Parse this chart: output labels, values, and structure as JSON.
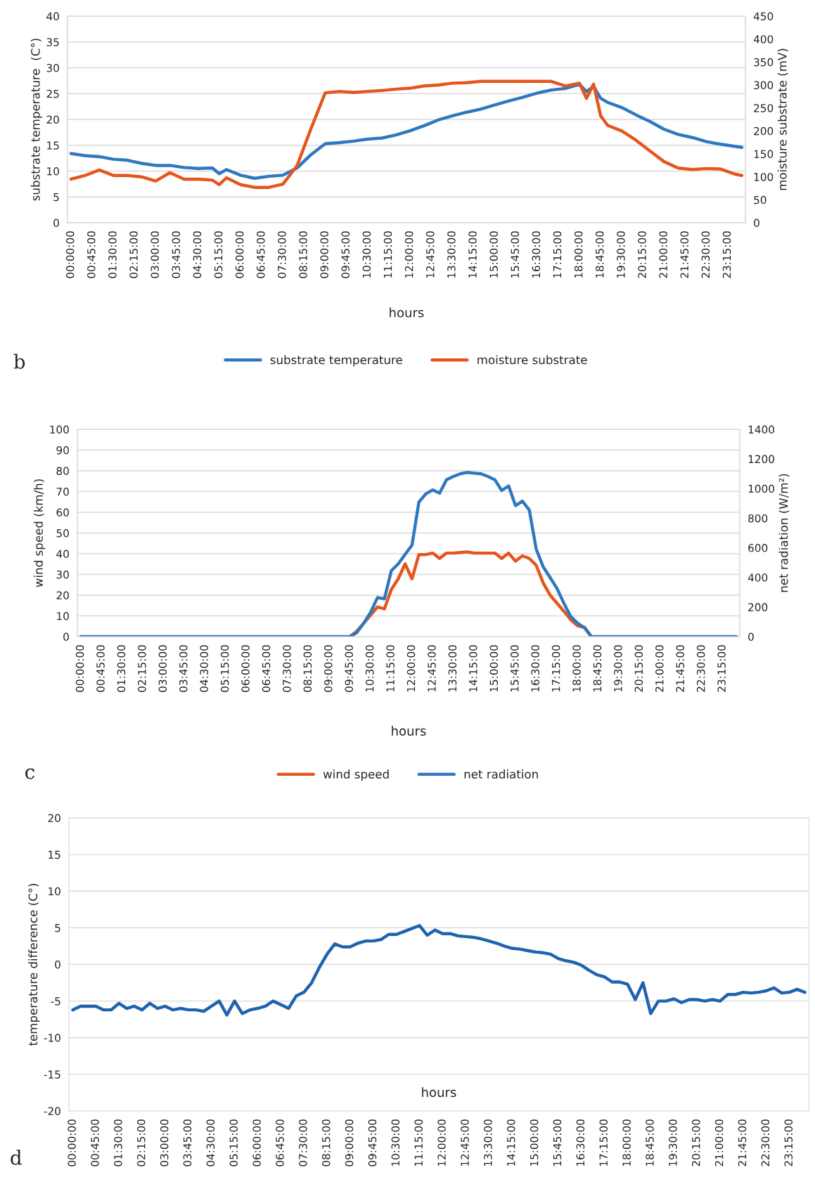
{
  "chart_data": [
    {
      "type": "line",
      "xlabel": "hours",
      "ylabel": "substrate temperature  (C°)",
      "y2label": "moisture substrate (mV)",
      "annotations": [
        "b"
      ],
      "legend": "bottom",
      "grid": "y",
      "x": [
        0,
        0.5,
        1,
        1.5,
        2,
        2.5,
        3,
        3.5,
        4,
        4.5,
        5,
        5.25,
        5.5,
        6,
        6.5,
        7,
        7.5,
        8,
        8.5,
        9,
        9.5,
        10,
        10.5,
        11,
        11.5,
        12,
        12.5,
        13,
        13.5,
        14,
        14.5,
        15,
        15.5,
        16,
        16.5,
        17,
        17.5,
        18,
        18.25,
        18.5,
        18.75,
        19,
        19.5,
        20,
        20.5,
        21,
        21.5,
        22,
        22.5,
        23,
        23.5,
        23.75
      ],
      "xlim": [
        -0.125,
        23.875
      ],
      "xticks": [
        {
          "value": 0,
          "label": "00:00:00"
        },
        {
          "value": 0.75,
          "label": "00:45:00"
        },
        {
          "value": 1.5,
          "label": "01:30:00"
        },
        {
          "value": 2.25,
          "label": "02:15:00"
        },
        {
          "value": 3,
          "label": "03:00:00"
        },
        {
          "value": 3.75,
          "label": "03:45:00"
        },
        {
          "value": 4.5,
          "label": "04:30:00"
        },
        {
          "value": 5.25,
          "label": "05:15:00"
        },
        {
          "value": 6,
          "label": "06:00:00"
        },
        {
          "value": 6.75,
          "label": "06:45:00"
        },
        {
          "value": 7.5,
          "label": "07:30:00"
        },
        {
          "value": 8.25,
          "label": "08:15:00"
        },
        {
          "value": 9,
          "label": "09:00:00"
        },
        {
          "value": 9.75,
          "label": "09:45:00"
        },
        {
          "value": 10.5,
          "label": "10:30:00"
        },
        {
          "value": 11.25,
          "label": "11:15:00"
        },
        {
          "value": 12,
          "label": "12:00:00"
        },
        {
          "value": 12.75,
          "label": "12:45:00"
        },
        {
          "value": 13.5,
          "label": "13:30:00"
        },
        {
          "value": 14.25,
          "label": "14:15:00"
        },
        {
          "value": 15,
          "label": "15:00:00"
        },
        {
          "value": 15.75,
          "label": "15:45:00"
        },
        {
          "value": 16.5,
          "label": "16:30:00"
        },
        {
          "value": 17.25,
          "label": "17:15:00"
        },
        {
          "value": 18,
          "label": "18:00:00"
        },
        {
          "value": 18.75,
          "label": "18:45:00"
        },
        {
          "value": 19.5,
          "label": "19:30:00"
        },
        {
          "value": 20.25,
          "label": "20:15:00"
        },
        {
          "value": 21,
          "label": "21:00:00"
        },
        {
          "value": 21.75,
          "label": "21:45:00"
        },
        {
          "value": 22.5,
          "label": "22:30:00"
        },
        {
          "value": 23.25,
          "label": "23:15:00"
        }
      ],
      "ylim": [
        0,
        40
      ],
      "yticks": [
        0,
        5,
        10,
        15,
        20,
        25,
        30,
        35,
        40
      ],
      "y2lim": [
        0,
        450
      ],
      "y2ticks": [
        0,
        50,
        100,
        150,
        200,
        250,
        300,
        350,
        400,
        450
      ],
      "series": [
        {
          "name": "substrate temperature",
          "color": "#2f78c0",
          "values": [
            13.4,
            13.0,
            12.8,
            12.3,
            12.1,
            11.5,
            11.1,
            11.1,
            10.7,
            10.5,
            10.6,
            9.5,
            10.3,
            9.2,
            8.6,
            9.0,
            9.2,
            10.6,
            13.2,
            15.3,
            15.5,
            15.8,
            16.2,
            16.4,
            17.0,
            17.8,
            18.8,
            19.9,
            20.7,
            21.4,
            22.0,
            22.8,
            23.6,
            24.3,
            25.1,
            25.7,
            26.0,
            26.8,
            25.4,
            26.4,
            24.1,
            23.3,
            22.3,
            20.9,
            19.6,
            18.1,
            17.1,
            16.5,
            15.7,
            15.2,
            14.8,
            14.6
          ]
        },
        {
          "name": "moisture substrate",
          "color": "#e5561e",
          "axis": "y2",
          "values": [
            95,
            103,
            115,
            103,
            103,
            100,
            91,
            109,
            95,
            95,
            93,
            83,
            98,
            83,
            77,
            77,
            84,
            124,
            206,
            283,
            286,
            284,
            286,
            288,
            291,
            293,
            298,
            300,
            304,
            305,
            308,
            308,
            308,
            308,
            308,
            308,
            298,
            304,
            271,
            302,
            233,
            212,
            200,
            180,
            156,
            133,
            119,
            116,
            118,
            117,
            106,
            103
          ]
        }
      ]
    },
    {
      "type": "line",
      "xlabel": "hours",
      "ylabel": "wind speed (km/h)",
      "y2label": "net radiation (W/m²)",
      "annotations": [
        "c"
      ],
      "legend": "bottom",
      "grid": "y",
      "x": [
        0,
        0.5,
        1,
        1.5,
        2,
        2.5,
        3,
        3.5,
        4,
        4.5,
        5,
        5.5,
        6,
        6.5,
        7,
        7.5,
        8,
        8.5,
        9,
        9.5,
        9.75,
        10,
        10.25,
        10.5,
        10.75,
        11,
        11.25,
        11.5,
        11.75,
        12,
        12.25,
        12.5,
        12.75,
        13,
        13.25,
        13.5,
        13.75,
        14,
        14.25,
        14.5,
        14.75,
        15,
        15.25,
        15.5,
        15.75,
        16,
        16.25,
        16.5,
        16.75,
        17,
        17.25,
        17.5,
        17.75,
        18,
        18.25,
        18.5,
        19,
        19.5,
        20,
        20.5,
        21,
        21.5,
        22,
        22.5,
        23,
        23.5,
        23.75
      ],
      "xlim": [
        -0.125,
        23.875
      ],
      "xticks": [
        {
          "value": 0,
          "label": "00:00:00"
        },
        {
          "value": 0.75,
          "label": "00:45:00"
        },
        {
          "value": 1.5,
          "label": "01:30:00"
        },
        {
          "value": 2.25,
          "label": "02:15:00"
        },
        {
          "value": 3,
          "label": "03:00:00"
        },
        {
          "value": 3.75,
          "label": "03:45:00"
        },
        {
          "value": 4.5,
          "label": "04:30:00"
        },
        {
          "value": 5.25,
          "label": "05:15:00"
        },
        {
          "value": 6,
          "label": "06:00:00"
        },
        {
          "value": 6.75,
          "label": "06:45:00"
        },
        {
          "value": 7.5,
          "label": "07:30:00"
        },
        {
          "value": 8.25,
          "label": "08:15:00"
        },
        {
          "value": 9,
          "label": "09:00:00"
        },
        {
          "value": 9.75,
          "label": "09:45:00"
        },
        {
          "value": 10.5,
          "label": "10:30:00"
        },
        {
          "value": 11.25,
          "label": "11:15:00"
        },
        {
          "value": 12,
          "label": "12:00:00"
        },
        {
          "value": 12.75,
          "label": "12:45:00"
        },
        {
          "value": 13.5,
          "label": "13:30:00"
        },
        {
          "value": 14.25,
          "label": "14:15:00"
        },
        {
          "value": 15,
          "label": "15:00:00"
        },
        {
          "value": 15.75,
          "label": "15:45:00"
        },
        {
          "value": 16.5,
          "label": "16:30:00"
        },
        {
          "value": 17.25,
          "label": "17:15:00"
        },
        {
          "value": 18,
          "label": "18:00:00"
        },
        {
          "value": 18.75,
          "label": "18:45:00"
        },
        {
          "value": 19.5,
          "label": "19:30:00"
        },
        {
          "value": 20.25,
          "label": "20:15:00"
        },
        {
          "value": 21,
          "label": "21:00:00"
        },
        {
          "value": 21.75,
          "label": "21:45:00"
        },
        {
          "value": 22.5,
          "label": "22:30:00"
        },
        {
          "value": 23.25,
          "label": "23:15:00"
        }
      ],
      "ylim": [
        0,
        100
      ],
      "yticks": [
        0,
        10,
        20,
        30,
        40,
        50,
        60,
        70,
        80,
        90,
        100
      ],
      "y2lim": [
        0,
        1400
      ],
      "y2ticks": [
        0,
        200,
        400,
        600,
        800,
        1000,
        1200,
        1400
      ],
      "series": [
        {
          "name": "wind speed",
          "color": "#e5561e",
          "values": [
            null,
            null,
            null,
            null,
            null,
            null,
            null,
            null,
            null,
            null,
            null,
            null,
            null,
            null,
            null,
            null,
            null,
            null,
            null,
            null,
            0,
            2.6,
            6.5,
            10.4,
            14.3,
            13.4,
            22.7,
            27.9,
            35.1,
            27.9,
            39.6,
            39.6,
            40.3,
            37.7,
            40.3,
            40.3,
            40.6,
            40.9,
            40.3,
            40.3,
            40.3,
            40.3,
            37.7,
            40.3,
            36.4,
            39.0,
            37.7,
            34.4,
            26.0,
            20.1,
            16.2,
            12.3,
            8.2,
            5.2,
            4.5,
            0,
            null,
            null,
            null,
            null,
            null,
            null,
            null,
            null,
            null,
            null,
            null
          ]
        },
        {
          "name": "net radiation",
          "color": "#2f78c0",
          "axis": "y2",
          "values": [
            0,
            0,
            0,
            0,
            0,
            0,
            0,
            0,
            0,
            0,
            0,
            0,
            0,
            0,
            0,
            0,
            0,
            0,
            0,
            0,
            0,
            27,
            91,
            164,
            264,
            255,
            445,
            491,
            555,
            618,
            909,
            964,
            991,
            969,
            1060,
            1082,
            1100,
            1109,
            1104,
            1100,
            1082,
            1060,
            987,
            1018,
            885,
            915,
            855,
            591,
            473,
            400,
            327,
            227,
            136,
            91,
            60,
            0,
            0,
            0,
            0,
            0,
            0,
            0,
            0,
            0,
            0,
            0,
            0
          ]
        }
      ]
    },
    {
      "type": "line",
      "xlabel": "hours",
      "ylabel": "temperature difference (C°)",
      "annotations": [
        "d"
      ],
      "grid": "y",
      "x": [
        0,
        0.25,
        0.5,
        0.75,
        1,
        1.25,
        1.5,
        1.75,
        2,
        2.25,
        2.5,
        2.75,
        3,
        3.25,
        3.5,
        3.75,
        4,
        4.25,
        4.5,
        4.75,
        5,
        5.25,
        5.5,
        5.75,
        6,
        6.25,
        6.5,
        6.75,
        7,
        7.25,
        7.5,
        7.75,
        8,
        8.25,
        8.5,
        8.75,
        9,
        9.25,
        9.5,
        9.75,
        10,
        10.25,
        10.5,
        10.75,
        11,
        11.25,
        11.5,
        11.75,
        12,
        12.25,
        12.5,
        12.75,
        13,
        13.25,
        13.5,
        13.75,
        14,
        14.25,
        14.5,
        14.75,
        15,
        15.25,
        15.5,
        15.75,
        16,
        16.25,
        16.5,
        16.75,
        17,
        17.25,
        17.5,
        17.75,
        18,
        18.25,
        18.5,
        18.75,
        19,
        19.25,
        19.5,
        19.75,
        20,
        20.25,
        20.5,
        20.75,
        21,
        21.25,
        21.5,
        21.75,
        22,
        22.25,
        22.5,
        22.75,
        23,
        23.25,
        23.5,
        23.75
      ],
      "xlim": [
        -0.125,
        23.875
      ],
      "xticks": [
        {
          "value": 0,
          "label": "00:00:00"
        },
        {
          "value": 0.75,
          "label": "00:45:00"
        },
        {
          "value": 1.5,
          "label": "01:30:00"
        },
        {
          "value": 2.25,
          "label": "02:15:00"
        },
        {
          "value": 3,
          "label": "03:00:00"
        },
        {
          "value": 3.75,
          "label": "03:45:00"
        },
        {
          "value": 4.5,
          "label": "04:30:00"
        },
        {
          "value": 5.25,
          "label": "05:15:00"
        },
        {
          "value": 6,
          "label": "06:00:00"
        },
        {
          "value": 6.75,
          "label": "06:45:00"
        },
        {
          "value": 7.5,
          "label": "07:30:00"
        },
        {
          "value": 8.25,
          "label": "08:15:00"
        },
        {
          "value": 9,
          "label": "09:00:00"
        },
        {
          "value": 9.75,
          "label": "09:45:00"
        },
        {
          "value": 10.5,
          "label": "10:30:00"
        },
        {
          "value": 11.25,
          "label": "11:15:00"
        },
        {
          "value": 12,
          "label": "12:00:00"
        },
        {
          "value": 12.75,
          "label": "12:45:00"
        },
        {
          "value": 13.5,
          "label": "13:30:00"
        },
        {
          "value": 14.25,
          "label": "14:15:00"
        },
        {
          "value": 15,
          "label": "15:00:00"
        },
        {
          "value": 15.75,
          "label": "15:45:00"
        },
        {
          "value": 16.5,
          "label": "16:30:00"
        },
        {
          "value": 17.25,
          "label": "17:15:00"
        },
        {
          "value": 18,
          "label": "18:00:00"
        },
        {
          "value": 18.75,
          "label": "18:45:00"
        },
        {
          "value": 19.5,
          "label": "19:30:00"
        },
        {
          "value": 20.25,
          "label": "20:15:00"
        },
        {
          "value": 21,
          "label": "21:00:00"
        },
        {
          "value": 21.75,
          "label": "21:45:00"
        },
        {
          "value": 22.5,
          "label": "22:30:00"
        },
        {
          "value": 23.25,
          "label": "23:15:00"
        }
      ],
      "ylim": [
        -20,
        20
      ],
      "yticks": [
        -20,
        -15,
        -10,
        -5,
        0,
        5,
        10,
        15,
        20
      ],
      "series": [
        {
          "color": "#1f63b0",
          "values": [
            -6.2,
            -5.7,
            -5.7,
            -5.7,
            -6.2,
            -6.2,
            -5.3,
            -6.0,
            -5.7,
            -6.2,
            -5.3,
            -6.0,
            -5.7,
            -6.2,
            -6.0,
            -6.2,
            -6.2,
            -6.4,
            -5.7,
            -5.0,
            -6.9,
            -5.0,
            -6.7,
            -6.2,
            -6.0,
            -5.7,
            -5.0,
            -5.5,
            -6.0,
            -4.3,
            -3.8,
            -2.5,
            -0.4,
            1.4,
            2.8,
            2.4,
            2.4,
            2.9,
            3.2,
            3.2,
            3.4,
            4.1,
            4.1,
            4.5,
            4.9,
            5.3,
            4.0,
            4.7,
            4.2,
            4.2,
            3.9,
            3.8,
            3.7,
            3.5,
            3.2,
            2.9,
            2.5,
            2.2,
            2.1,
            1.9,
            1.7,
            1.6,
            1.4,
            0.8,
            0.5,
            0.3,
            -0.1,
            -0.8,
            -1.4,
            -1.7,
            -2.4,
            -2.4,
            -2.7,
            -4.8,
            -2.5,
            -6.7,
            -5.0,
            -5.0,
            -4.7,
            -5.2,
            -4.8,
            -4.8,
            -5.0,
            -4.8,
            -5.0,
            -4.1,
            -4.1,
            -3.8,
            -3.9,
            -3.8,
            -3.6,
            -3.2,
            -3.9,
            -3.8,
            -3.4,
            -3.8
          ]
        }
      ]
    }
  ]
}
